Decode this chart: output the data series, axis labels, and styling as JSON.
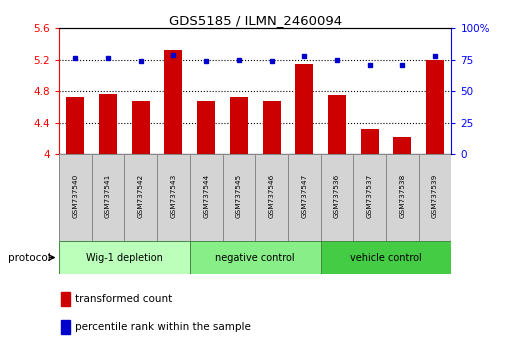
{
  "title": "GDS5185 / ILMN_2460094",
  "samples": [
    "GSM737540",
    "GSM737541",
    "GSM737542",
    "GSM737543",
    "GSM737544",
    "GSM737545",
    "GSM737546",
    "GSM737547",
    "GSM737536",
    "GSM737537",
    "GSM737538",
    "GSM737539"
  ],
  "red_values": [
    4.73,
    4.77,
    4.68,
    5.32,
    4.68,
    4.72,
    4.68,
    5.15,
    4.75,
    4.32,
    4.22,
    5.2
  ],
  "blue_values": [
    76,
    76,
    74,
    79,
    74,
    75,
    74,
    78,
    75,
    71,
    71,
    78
  ],
  "ylim_left": [
    4.0,
    5.6
  ],
  "ylim_right": [
    0,
    100
  ],
  "yticks_left": [
    4.0,
    4.4,
    4.8,
    5.2,
    5.6
  ],
  "ytick_labels_left": [
    "4",
    "4.4",
    "4.8",
    "5.2",
    "5.6"
  ],
  "yticks_right": [
    0,
    25,
    50,
    75,
    100
  ],
  "ytick_labels_right": [
    "0",
    "25",
    "50",
    "75",
    "100%"
  ],
  "groups": [
    {
      "label": "Wig-1 depletion",
      "start": 0,
      "end": 3,
      "color": "#bbffbb"
    },
    {
      "label": "negative control",
      "start": 4,
      "end": 7,
      "color": "#88ee88"
    },
    {
      "label": "vehicle control",
      "start": 8,
      "end": 11,
      "color": "#44cc44"
    }
  ],
  "bar_color": "#cc0000",
  "dot_color": "#0000cc",
  "bar_width": 0.55,
  "legend_red_label": "transformed count",
  "legend_blue_label": "percentile rank within the sample",
  "protocol_label": "protocol",
  "hline_vals": [
    5.2,
    4.8,
    4.4
  ]
}
